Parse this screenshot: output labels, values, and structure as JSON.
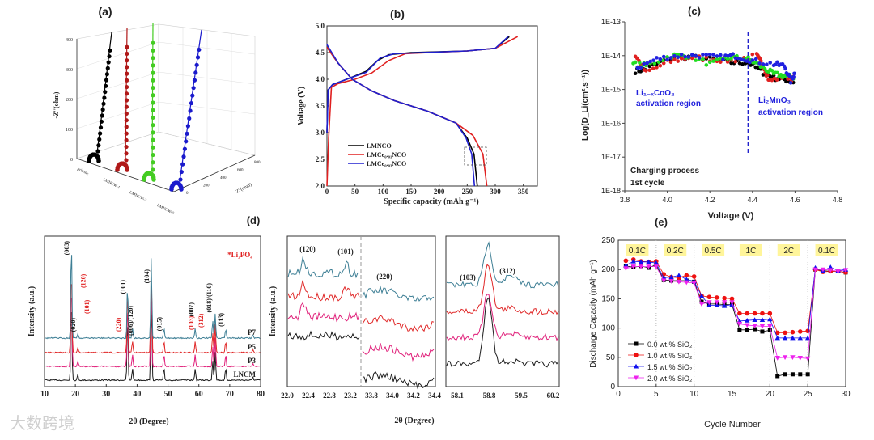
{
  "watermark": "大数跨境",
  "chart_data": [
    {
      "id": "a",
      "panel_label": "(a)",
      "type": "scatter",
      "title": "",
      "ylabel": "-Z''(ohm)",
      "xlabel": "Z' (ohm)",
      "y_ticks": [
        "0",
        "100",
        "200",
        "300",
        "400"
      ],
      "x_ticks": [
        "0",
        "200",
        "400",
        "600",
        "800"
      ],
      "ylim": [
        0,
        400
      ],
      "series": [
        {
          "name": "pristine",
          "color": "#000000"
        },
        {
          "name": "LMNCW-1",
          "color": "#b01818"
        },
        {
          "name": "LMNCW-3",
          "color": "#44cc22"
        },
        {
          "name": "LMNCW-5",
          "color": "#1a1acc"
        }
      ]
    },
    {
      "id": "b",
      "panel_label": "(b)",
      "type": "line",
      "xlabel": "Specific capacity (mAh g⁻¹)",
      "ylabel": "Voltage (V)",
      "xlim": [
        0,
        375
      ],
      "ylim": [
        2.0,
        5.0
      ],
      "x_ticks": [
        0,
        50,
        100,
        150,
        200,
        250,
        300,
        350
      ],
      "y_ticks": [
        "2.0",
        "2.5",
        "3.0",
        "3.5",
        "4.0",
        "4.5",
        "5.0"
      ],
      "legend_position": "bottom-left",
      "series": [
        {
          "name": "LMNCO",
          "color": "#000000",
          "charge": [
            [
              0,
              3.0
            ],
            [
              2,
              3.8
            ],
            [
              10,
              3.9
            ],
            [
              40,
              4.02
            ],
            [
              70,
              4.15
            ],
            [
              90,
              4.35
            ],
            [
              110,
              4.46
            ],
            [
              150,
              4.5
            ],
            [
              250,
              4.53
            ],
            [
              300,
              4.58
            ],
            [
              325,
              4.8
            ]
          ],
          "discharge": [
            [
              0,
              4.6
            ],
            [
              20,
              4.3
            ],
            [
              45,
              4.0
            ],
            [
              80,
              3.78
            ],
            [
              120,
              3.6
            ],
            [
              180,
              3.4
            ],
            [
              230,
              3.18
            ],
            [
              250,
              2.9
            ],
            [
              262,
              2.6
            ],
            [
              268,
              2.0
            ]
          ]
        },
        {
          "name": "LMCe₀.₀₁NCO",
          "color": "#e02020",
          "charge": [
            [
              0,
              2.0
            ],
            [
              3,
              2.9
            ],
            [
              8,
              3.85
            ],
            [
              20,
              3.92
            ],
            [
              50,
              4.0
            ],
            [
              80,
              4.12
            ],
            [
              110,
              4.35
            ],
            [
              140,
              4.48
            ],
            [
              250,
              4.53
            ],
            [
              300,
              4.58
            ],
            [
              340,
              4.8
            ]
          ],
          "discharge": [
            [
              0,
              4.6
            ],
            [
              20,
              4.3
            ],
            [
              45,
              4.0
            ],
            [
              80,
              3.78
            ],
            [
              120,
              3.6
            ],
            [
              180,
              3.4
            ],
            [
              230,
              3.18
            ],
            [
              260,
              2.95
            ],
            [
              278,
              2.6
            ],
            [
              285,
              2.0
            ]
          ]
        },
        {
          "name": "LMCe₀.₀₃NCO",
          "color": "#2020d0",
          "charge": [
            [
              0,
              3.0
            ],
            [
              2,
              3.8
            ],
            [
              10,
              3.9
            ],
            [
              40,
              4.02
            ],
            [
              70,
              4.13
            ],
            [
              95,
              4.4
            ],
            [
              120,
              4.48
            ],
            [
              250,
              4.53
            ],
            [
              300,
              4.58
            ],
            [
              323,
              4.8
            ]
          ],
          "discharge": [
            [
              0,
              4.65
            ],
            [
              20,
              4.3
            ],
            [
              45,
              4.0
            ],
            [
              80,
              3.78
            ],
            [
              120,
              3.6
            ],
            [
              180,
              3.4
            ],
            [
              230,
              3.18
            ],
            [
              248,
              2.9
            ],
            [
              258,
              2.6
            ],
            [
              263,
              2.0
            ]
          ]
        }
      ]
    },
    {
      "id": "c",
      "panel_label": "(c)",
      "type": "scatter",
      "xlabel": "Voltage (V)",
      "ylabel": "Log(D_Li(cm².s⁻¹))",
      "xlim": [
        3.8,
        4.8
      ],
      "ylim_log10": [
        -18,
        -13
      ],
      "x_ticks": [
        "3.8",
        "4.0",
        "4.2",
        "4.4",
        "4.6",
        "4.8"
      ],
      "y_ticks": [
        "1E-18",
        "1E-17",
        "1E-16",
        "1E-15",
        "1E-14",
        "1E-13"
      ],
      "divider_voltage": 4.38,
      "annotations": {
        "region1_line1": "Li₁₋ₓCoO₂",
        "region1_line2": "activation  region",
        "region2_line1": "Li₂MnO₃",
        "region2_line2": "activation  region",
        "note_line1": "Charging process",
        "note_line2": "1st cycle"
      },
      "series": [
        {
          "color": "#000000",
          "points": [
            [
              3.85,
              -14.45
            ],
            [
              3.9,
              -14.4
            ],
            [
              4.0,
              -14.1
            ],
            [
              4.1,
              -14.05
            ],
            [
              4.2,
              -14.1
            ],
            [
              4.3,
              -14.2
            ],
            [
              4.38,
              -14.2
            ],
            [
              4.45,
              -14.5
            ],
            [
              4.5,
              -14.65
            ],
            [
              4.55,
              -14.7
            ],
            [
              4.6,
              -14.8
            ]
          ]
        },
        {
          "color": "#e02020",
          "points": [
            [
              3.85,
              -14.0
            ],
            [
              3.9,
              -14.5
            ],
            [
              4.0,
              -14.2
            ],
            [
              4.1,
              -14.05
            ],
            [
              4.2,
              -14.1
            ],
            [
              4.3,
              -14.15
            ],
            [
              4.42,
              -14.0
            ],
            [
              4.45,
              -14.3
            ],
            [
              4.48,
              -14.75
            ],
            [
              4.55,
              -14.6
            ],
            [
              4.6,
              -14.7
            ]
          ]
        },
        {
          "color": "#22dd22",
          "points": [
            [
              3.84,
              -14.25
            ],
            [
              3.9,
              -14.3
            ],
            [
              4.02,
              -14.0
            ],
            [
              4.1,
              -14.0
            ],
            [
              4.2,
              -14.25
            ],
            [
              4.3,
              -14.05
            ],
            [
              4.38,
              -14.1
            ],
            [
              4.45,
              -14.35
            ],
            [
              4.5,
              -14.55
            ],
            [
              4.55,
              -14.6
            ],
            [
              4.6,
              -14.65
            ]
          ]
        },
        {
          "color": "#2020e0",
          "points": [
            [
              3.86,
              -14.35
            ],
            [
              3.95,
              -14.1
            ],
            [
              4.05,
              -14.0
            ],
            [
              4.15,
              -14.0
            ],
            [
              4.25,
              -14.05
            ],
            [
              4.32,
              -14.0
            ],
            [
              4.4,
              -14.15
            ],
            [
              4.5,
              -14.25
            ],
            [
              4.55,
              -14.3
            ],
            [
              4.58,
              -14.75
            ],
            [
              4.6,
              -14.5
            ]
          ]
        }
      ]
    },
    {
      "id": "d",
      "panel_label": "(d)",
      "type": "line",
      "xlabel": "2θ (Degree)",
      "ylabel": "Intensity (a.u.)",
      "xlim": [
        10,
        80
      ],
      "x_ticks": [
        10,
        20,
        30,
        40,
        50,
        60,
        70,
        80
      ],
      "legend_note": "*Li₃PO₄",
      "series": [
        {
          "name": "LNCM",
          "color": "#1a1a1a"
        },
        {
          "name": "P3",
          "color": "#e0207a"
        },
        {
          "name": "P5",
          "color": "#e02828"
        },
        {
          "name": "P7",
          "color": "#3e7f95"
        }
      ],
      "peaks": [
        [
          18.7,
          1.0
        ],
        [
          20.8,
          0.05
        ],
        [
          36.9,
          0.55
        ],
        [
          38.5,
          0.1
        ],
        [
          44.6,
          0.85
        ],
        [
          48.7,
          0.1
        ],
        [
          58.8,
          0.1
        ],
        [
          64.5,
          0.18
        ],
        [
          65.3,
          0.25
        ],
        [
          68.7,
          0.1
        ],
        [
          77.5,
          0.03
        ]
      ],
      "labels_black": [
        {
          "text": "(003)",
          "x": 18.7
        },
        {
          "text": "(020)",
          "x": 20.8
        },
        {
          "text": "(101)",
          "x": 36.9
        },
        {
          "text": "(006)/(120)",
          "x": 39.3
        },
        {
          "text": "(104)",
          "x": 44.6
        },
        {
          "text": "(015)",
          "x": 48.7
        },
        {
          "text": "(007)",
          "x": 59.0
        },
        {
          "text": "(018)/(110)",
          "x": 64.8
        },
        {
          "text": "(113)",
          "x": 68.7
        }
      ],
      "labels_red": [
        {
          "text": "(120)",
          "x": 22.5
        },
        {
          "text": "(101)",
          "x": 23.6
        },
        {
          "text": "(220)",
          "x": 33.9
        },
        {
          "text": "(103)",
          "x": 57.4
        },
        {
          "text": "(312)",
          "x": 60.6
        }
      ]
    },
    {
      "id": "d-zoom",
      "type": "line",
      "xlabel": "2θ (Drgree)",
      "ylabel": "Intensity (a.u.)",
      "left_x_ticks": [
        "22.0",
        "22.4",
        "22.8",
        "23.2",
        "33.8",
        "34.0",
        "34.2",
        "34.4"
      ],
      "right_x_ticks": [
        "58.1",
        "58.8",
        "59.5",
        "60.2"
      ],
      "peak_labels": [
        "(120)",
        "(101)",
        "(220)",
        "(103)",
        "(312)"
      ]
    },
    {
      "id": "e",
      "panel_label": "(e)",
      "type": "line",
      "xlabel": "Cycle Number",
      "ylabel": "Discharge Capacity (mAh g⁻¹)",
      "xlim": [
        0,
        30
      ],
      "ylim": [
        0,
        250
      ],
      "x_ticks": [
        0,
        5,
        10,
        15,
        20,
        25,
        30
      ],
      "y_ticks": [
        0,
        50,
        100,
        150,
        200,
        250
      ],
      "rate_labels": [
        "0.1C",
        "0.2C",
        "0.5C",
        "1C",
        "2C",
        "0.1C"
      ],
      "legend_position": "bottom-left",
      "series": [
        {
          "name": "0.0 wt.% SiO₂",
          "color": "#000000",
          "marker": "square",
          "values": [
            206,
            204,
            206,
            203,
            208,
            182,
            181,
            181,
            181,
            179,
            145,
            141,
            141,
            140,
            140,
            97,
            97,
            98,
            94,
            96,
            18,
            21,
            21,
            21,
            21,
            200,
            198,
            197,
            197,
            195
          ]
        },
        {
          "name": "1.0 wt.% SiO₂",
          "color": "#ee1111",
          "marker": "circle",
          "values": [
            215,
            217,
            214,
            213,
            214,
            192,
            187,
            186,
            190,
            188,
            155,
            153,
            152,
            151,
            150,
            125,
            125,
            125,
            125,
            125,
            92,
            92,
            93,
            94,
            95,
            200,
            196,
            197,
            197,
            195
          ]
        },
        {
          "name": "1.5 wt.% SiO₂",
          "color": "#1111ee",
          "marker": "triangle-up",
          "values": [
            207,
            214,
            213,
            213,
            211,
            186,
            187,
            190,
            183,
            180,
            155,
            139,
            139,
            138,
            140,
            112,
            113,
            114,
            114,
            115,
            83,
            83,
            83,
            83,
            83,
            203,
            198,
            204,
            198,
            200
          ]
        },
        {
          "name": "2.0 wt.% SiO₂",
          "color": "#ee22ee",
          "marker": "triangle-down",
          "values": [
            202,
            205,
            205,
            205,
            205,
            181,
            180,
            179,
            178,
            177,
            141,
            144,
            144,
            144,
            144,
            107,
            105,
            104,
            103,
            103,
            49,
            50,
            50,
            49,
            48,
            200,
            200,
            199,
            197,
            199
          ]
        }
      ]
    }
  ]
}
